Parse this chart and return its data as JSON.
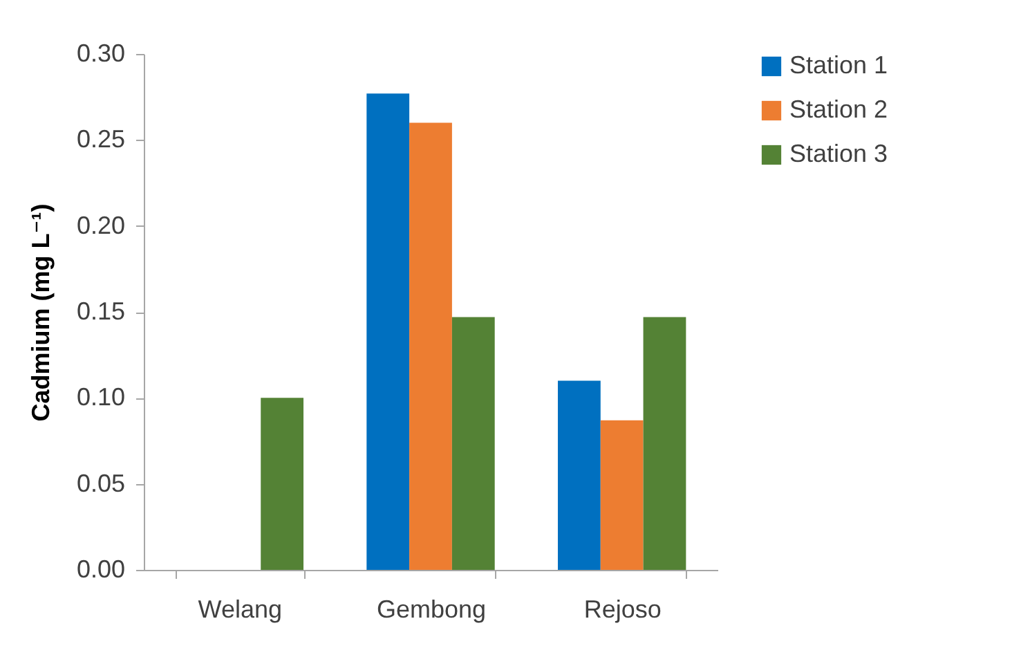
{
  "chart_data": {
    "type": "bar",
    "ylabel": "Cadmium (mg L⁻¹)",
    "categories": [
      "Welang",
      "Gembong",
      "Rejoso"
    ],
    "series": [
      {
        "name": "Station 1",
        "color": "#0070c0",
        "values": [
          0,
          0.277,
          0.11
        ]
      },
      {
        "name": "Station 2",
        "color": "#ed7d31",
        "values": [
          0,
          0.26,
          0.087
        ]
      },
      {
        "name": "Station 3",
        "color": "#548235",
        "values": [
          0.1,
          0.147,
          0.147
        ]
      }
    ],
    "ylim": [
      0,
      0.3
    ],
    "yticks": [
      {
        "value": 0,
        "label": "0.00"
      },
      {
        "value": 0.05,
        "label": "0.05"
      },
      {
        "value": 0.1,
        "label": "0.10"
      },
      {
        "value": 0.15,
        "label": "0.15"
      },
      {
        "value": 0.2,
        "label": "0.20"
      },
      {
        "value": 0.25,
        "label": "0.25"
      },
      {
        "value": 0.3,
        "label": "0.30"
      }
    ],
    "grid": false,
    "legend": "right"
  }
}
